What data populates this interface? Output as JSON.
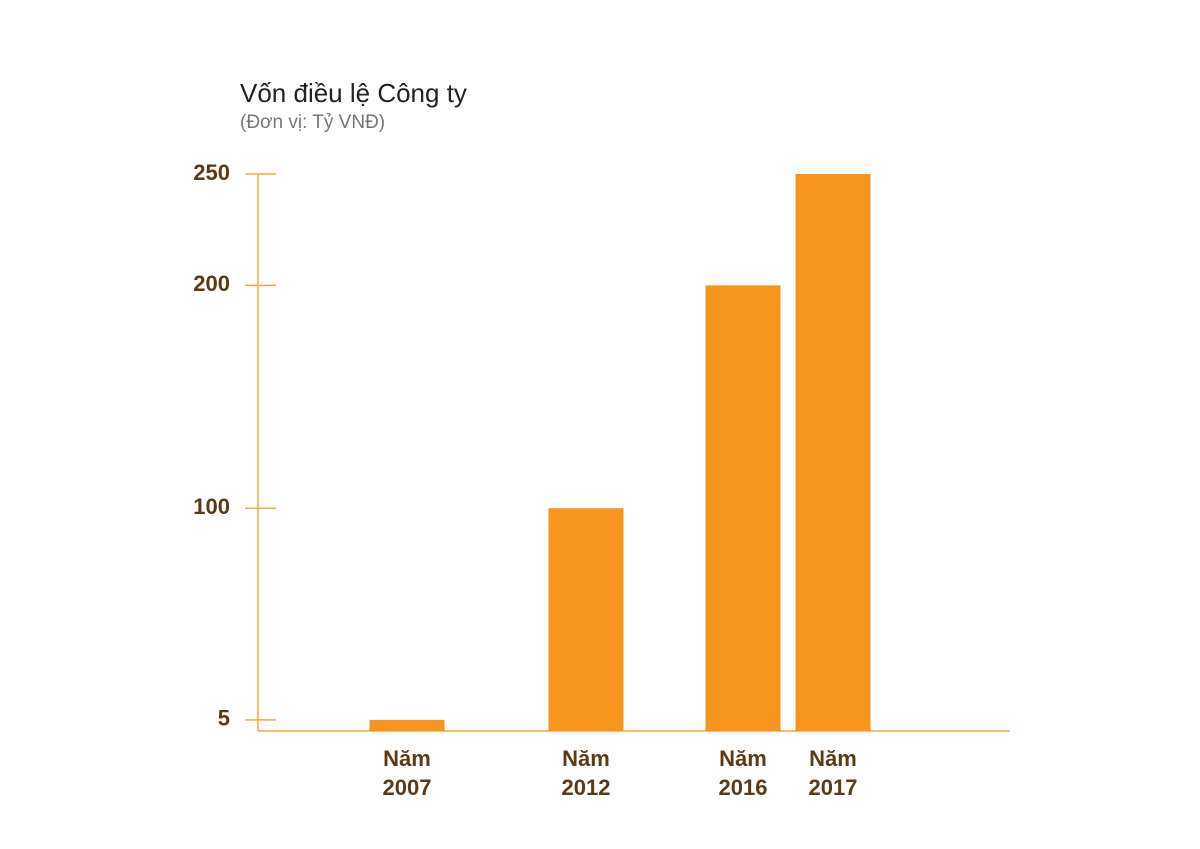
{
  "chart_data": {
    "type": "bar",
    "title": "Vốn điều lệ Công ty",
    "subtitle": "(Đơn vị: Tỷ VNĐ)",
    "categories": [
      "Năm 2007",
      "Năm 2012",
      "Năm 2016",
      "Năm 2017"
    ],
    "values": [
      5,
      100,
      200,
      250
    ],
    "color": "#f7941d",
    "ylim": [
      0,
      250
    ],
    "yticks": [
      5,
      100,
      200,
      250
    ],
    "grid": false
  }
}
